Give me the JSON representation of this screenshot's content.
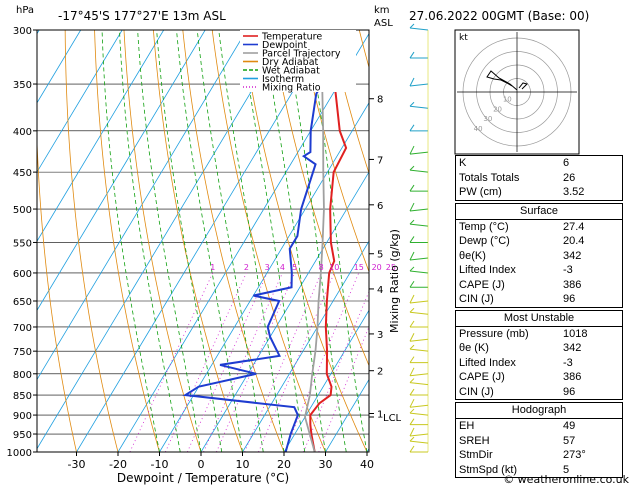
{
  "chart_data": {
    "type": "line",
    "title": "-17°45'S  177°27'E  13m  ASL",
    "datetime": "27.06.2022  00GMT  (Base: 00)",
    "xlabel": "Dewpoint / Temperature (°C)",
    "ylabel_left": "hPa",
    "ylabel_right_top": "km",
    "ylabel_right_sub": "ASL",
    "mixing_ratio_label": "Mixing Ratio (g/kg)",
    "pressure_ticks": [
      300,
      350,
      400,
      450,
      500,
      550,
      600,
      650,
      700,
      750,
      800,
      850,
      900,
      950,
      1000
    ],
    "temp_ticks": [
      -30,
      -20,
      -10,
      0,
      10,
      20,
      30,
      40
    ],
    "xlim": [
      -35,
      40
    ],
    "ylim": [
      1000,
      300
    ],
    "km_ticks": [
      {
        "km": "8",
        "p": 365
      },
      {
        "km": "7",
        "p": 434
      },
      {
        "km": "6",
        "p": 494
      },
      {
        "km": "5",
        "p": 568
      },
      {
        "km": "4",
        "p": 628
      },
      {
        "km": "3",
        "p": 714
      },
      {
        "km": "2",
        "p": 793
      },
      {
        "km": "1",
        "p": 896
      }
    ],
    "lcl": {
      "label": "LCL",
      "p": 905
    },
    "mixing_ratio_values": [
      "1",
      "2",
      "3",
      "4",
      "5",
      "8",
      "10",
      "15",
      "20",
      "25"
    ],
    "legend": [
      {
        "name": "Temperature",
        "color": "#e02020"
      },
      {
        "name": "Dewpoint",
        "color": "#1e3cd0"
      },
      {
        "name": "Parcel Trajectory",
        "color": "#a0a0a0"
      },
      {
        "name": "Dry Adiabat",
        "color": "#e08a10"
      },
      {
        "name": "Wet Adiabat",
        "color": "#10a010"
      },
      {
        "name": "Isotherm",
        "color": "#20a0e0"
      },
      {
        "name": "Mixing Ratio",
        "color": "#d020d0"
      }
    ],
    "series": [
      {
        "name": "Temperature",
        "color": "#e02020",
        "points": [
          [
            1000,
            27.4
          ],
          [
            950,
            24
          ],
          [
            925,
            22.4
          ],
          [
            900,
            21
          ],
          [
            870,
            21.5
          ],
          [
            850,
            23
          ],
          [
            830,
            22
          ],
          [
            800,
            19
          ],
          [
            750,
            15.8
          ],
          [
            700,
            12
          ],
          [
            650,
            8.5
          ],
          [
            600,
            5
          ],
          [
            580,
            4.5
          ],
          [
            550,
            1
          ],
          [
            500,
            -4
          ],
          [
            450,
            -8.5
          ],
          [
            420,
            -9
          ],
          [
            400,
            -13
          ],
          [
            350,
            -21
          ],
          [
            320,
            -27
          ],
          [
            300,
            -31
          ]
        ]
      },
      {
        "name": "Dewpoint",
        "color": "#1e3cd0",
        "points": [
          [
            1000,
            20.4
          ],
          [
            950,
            19
          ],
          [
            900,
            18
          ],
          [
            880,
            16
          ],
          [
            850,
            -12
          ],
          [
            830,
            -10
          ],
          [
            800,
            2
          ],
          [
            780,
            -8
          ],
          [
            760,
            5
          ],
          [
            720,
            0
          ],
          [
            700,
            -2
          ],
          [
            650,
            -3
          ],
          [
            640,
            -10
          ],
          [
            625,
            -2
          ],
          [
            600,
            -4
          ],
          [
            560,
            -8
          ],
          [
            540,
            -8
          ],
          [
            500,
            -11
          ],
          [
            440,
            -14
          ],
          [
            430,
            -18
          ],
          [
            425,
            -17
          ],
          [
            400,
            -20
          ],
          [
            360,
            -24
          ],
          [
            345,
            -24
          ],
          [
            330,
            -28
          ],
          [
            300,
            -38
          ]
        ]
      },
      {
        "name": "Parcel Trajectory",
        "color": "#a0a0a0",
        "points": [
          [
            1000,
            27.4
          ],
          [
            905,
            20
          ],
          [
            850,
            18
          ],
          [
            800,
            15.5
          ],
          [
            750,
            13
          ],
          [
            700,
            10
          ],
          [
            650,
            6.5
          ],
          [
            600,
            3
          ],
          [
            550,
            -1
          ],
          [
            500,
            -5.5
          ],
          [
            450,
            -11
          ],
          [
            400,
            -17
          ],
          [
            350,
            -24
          ],
          [
            300,
            -32
          ]
        ]
      }
    ]
  },
  "hodograph": {
    "label": "kt",
    "rings": [
      "10",
      "20",
      "30",
      "40"
    ]
  },
  "indices": [
    {
      "label": "K",
      "value": "6"
    },
    {
      "label": "Totals Totals",
      "value": "26"
    },
    {
      "label": "PW (cm)",
      "value": "3.52"
    }
  ],
  "surface": {
    "title": "Surface",
    "rows": [
      {
        "label": "Temp (°C)",
        "value": "27.4"
      },
      {
        "label": "Dewp (°C)",
        "value": "20.4"
      },
      {
        "label": "θe(K)",
        "value": "342"
      },
      {
        "label": "Lifted Index",
        "value": "-3"
      },
      {
        "label": "CAPE (J)",
        "value": "386"
      },
      {
        "label": "CIN (J)",
        "value": "96"
      }
    ]
  },
  "most_unstable": {
    "title": "Most Unstable",
    "rows": [
      {
        "label": "Pressure (mb)",
        "value": "1018"
      },
      {
        "label": "θe (K)",
        "value": "342"
      },
      {
        "label": "Lifted Index",
        "value": "-3"
      },
      {
        "label": "CAPE (J)",
        "value": "386"
      },
      {
        "label": "CIN (J)",
        "value": "96"
      }
    ]
  },
  "hodograph_table": {
    "title": "Hodograph",
    "rows": [
      {
        "label": "EH",
        "value": "49"
      },
      {
        "label": "SREH",
        "value": "57"
      },
      {
        "label": "StmDir",
        "value": "273°"
      },
      {
        "label": "StmSpd (kt)",
        "value": "5"
      }
    ]
  },
  "copyright": "© weatheronline.co.uk"
}
